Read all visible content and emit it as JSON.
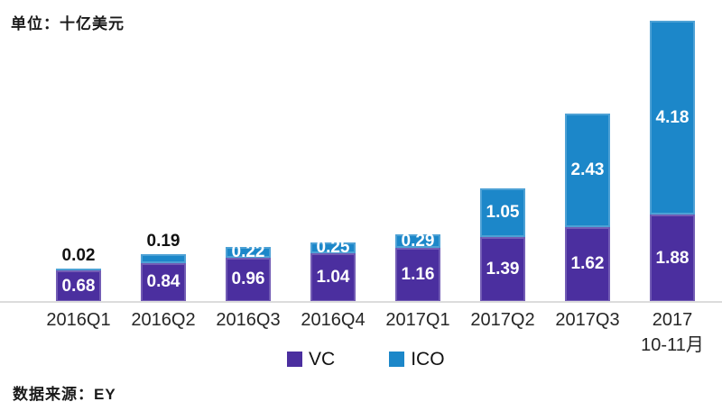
{
  "header": {
    "unit_label": "单位：十亿美元"
  },
  "footer": {
    "source_label": "数据来源：EY"
  },
  "chart_data": {
    "type": "bar",
    "stacked": true,
    "title": "单位：十亿美元",
    "source": "数据来源：EY",
    "unit": "十亿美元",
    "grid": false,
    "legend_position": "bottom",
    "axis_line_color": "#dcdcdc",
    "ylim": [
      0,
      6.2
    ],
    "categories": [
      {
        "label": "2016Q1",
        "sublabel": ""
      },
      {
        "label": "2016Q2",
        "sublabel": ""
      },
      {
        "label": "2016Q3",
        "sublabel": ""
      },
      {
        "label": "2016Q4",
        "sublabel": ""
      },
      {
        "label": "2017Q1",
        "sublabel": ""
      },
      {
        "label": "2017Q2",
        "sublabel": ""
      },
      {
        "label": "2017Q3",
        "sublabel": ""
      },
      {
        "label": "2017",
        "sublabel": "10-11月"
      }
    ],
    "series": [
      {
        "name": "VC",
        "color": "#4B2F9F",
        "label_color": "#FFFFFF",
        "values": [
          0.68,
          0.84,
          0.96,
          1.04,
          1.16,
          1.39,
          1.62,
          1.88
        ]
      },
      {
        "name": "ICO",
        "color": "#1C87C9",
        "values": [
          0.02,
          0.19,
          0.22,
          0.25,
          0.29,
          1.05,
          2.43,
          4.18
        ],
        "label_placements": [
          "above",
          "above",
          "center",
          "center",
          "center",
          "center",
          "center",
          "center"
        ],
        "label_colors": [
          "#111111",
          "#111111",
          "#FFFFFF",
          "#FFFFFF",
          "#FFFFFF",
          "#FFFFFF",
          "#FFFFFF",
          "#FFFFFF"
        ]
      }
    ]
  }
}
